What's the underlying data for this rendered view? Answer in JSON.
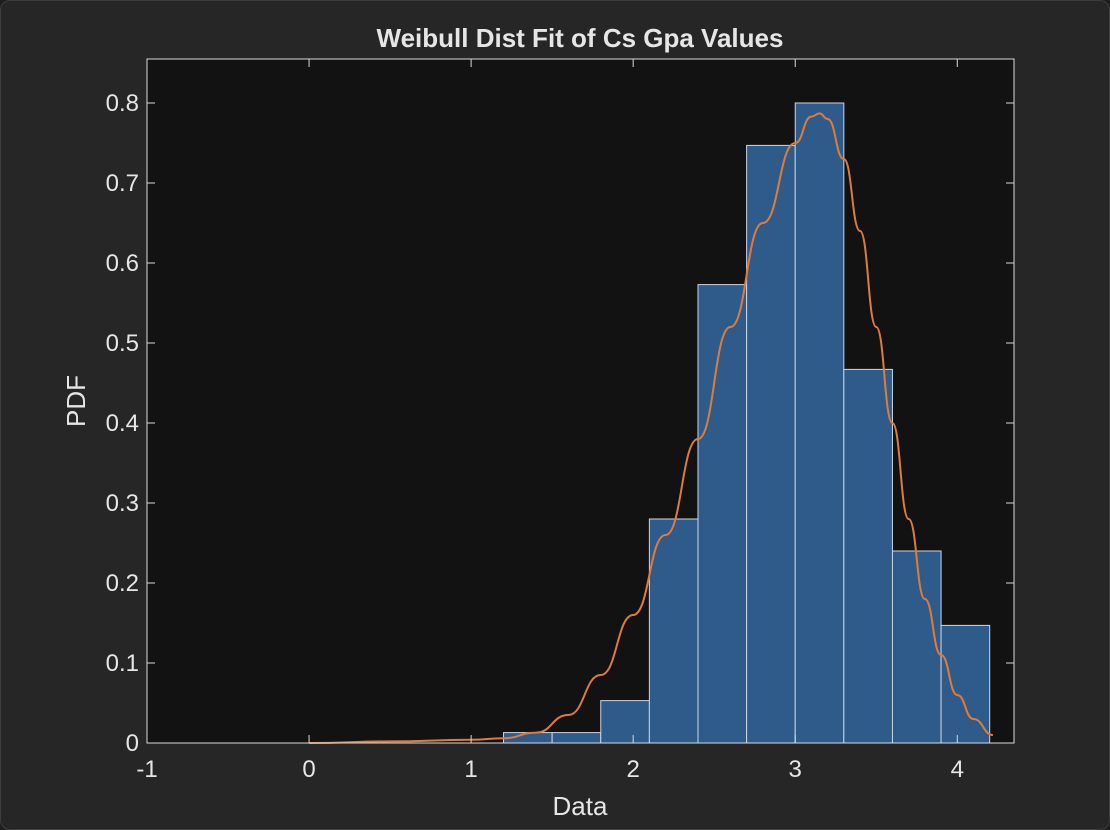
{
  "figure": {
    "background": "#262626",
    "axes_background": "#121212"
  },
  "chart_data": {
    "type": "bar",
    "title": "Weibull Dist Fit of Cs Gpa Values",
    "xlabel": "Data",
    "ylabel": "PDF",
    "xlim": [
      -1,
      4.35
    ],
    "ylim": [
      0,
      0.8
    ],
    "xticks": [
      "-1",
      "0",
      "1",
      "2",
      "3",
      "4"
    ],
    "xtick_values": [
      -1,
      0,
      1,
      2,
      3,
      4
    ],
    "yticks": [
      "0",
      "0.1",
      "0.2",
      "0.3",
      "0.4",
      "0.5",
      "0.6",
      "0.7",
      "0.8"
    ],
    "ytick_values": [
      0,
      0.1,
      0.2,
      0.3,
      0.4,
      0.5,
      0.6,
      0.7,
      0.8
    ],
    "bin_edges": [
      1.2,
      1.5,
      1.8,
      2.1,
      2.4,
      2.7,
      3.0,
      3.3,
      3.6,
      3.9,
      4.2
    ],
    "values": [
      0.013,
      0.013,
      0.053,
      0.28,
      0.573,
      0.747,
      0.8,
      0.467,
      0.24,
      0.147
    ],
    "bar_color": "#2f5b8a",
    "bar_edge_color": "#c8d6e8",
    "fit_curve": {
      "color": "#e07b3c",
      "points": [
        [
          0,
          0
        ],
        [
          0.5,
          0.002
        ],
        [
          1.0,
          0.004
        ],
        [
          1.2,
          0.006
        ],
        [
          1.4,
          0.013
        ],
        [
          1.6,
          0.035
        ],
        [
          1.8,
          0.085
        ],
        [
          2.0,
          0.16
        ],
        [
          2.2,
          0.26
        ],
        [
          2.4,
          0.38
        ],
        [
          2.6,
          0.52
        ],
        [
          2.8,
          0.65
        ],
        [
          3.0,
          0.75
        ],
        [
          3.1,
          0.783
        ],
        [
          3.15,
          0.787
        ],
        [
          3.2,
          0.78
        ],
        [
          3.3,
          0.73
        ],
        [
          3.4,
          0.64
        ],
        [
          3.5,
          0.52
        ],
        [
          3.6,
          0.4
        ],
        [
          3.7,
          0.28
        ],
        [
          3.8,
          0.18
        ],
        [
          3.9,
          0.11
        ],
        [
          4.0,
          0.06
        ],
        [
          4.1,
          0.03
        ],
        [
          4.22,
          0.01
        ]
      ]
    }
  }
}
